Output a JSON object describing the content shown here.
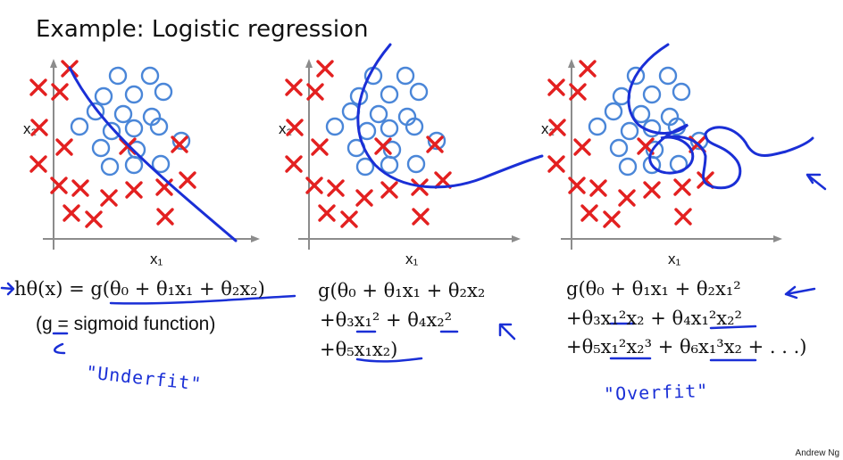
{
  "title": "Example: Logistic regression",
  "panels": [
    {
      "xlabel": "x₁",
      "ylabel": "x₂",
      "hypothesis": [
        "hθ(x) = g(θ₀ + θ₁x₁ + θ₂x₂)"
      ],
      "note": "(g = sigmoid function)",
      "annotation": "\"Underfit\""
    },
    {
      "xlabel": "x₁",
      "ylabel": "x₂",
      "hypothesis": [
        "g(θ₀ + θ₁x₁ + θ₂x₂",
        "+θ₃x₁² + θ₄x₂²",
        "+θ₅x₁x₂)"
      ]
    },
    {
      "xlabel": "x₁",
      "ylabel": "x₂",
      "hypothesis": [
        "g(θ₀ + θ₁x₁ + θ₂x₁²",
        "+θ₃x₁²x₂ + θ₄x₁²x₂²",
        "+θ₅x₁²x₂³ + θ₆x₁³x₂ + . . .)"
      ],
      "annotation": "\"Overfit\""
    }
  ],
  "footer": "Andrew Ng",
  "colors": {
    "cross": "#e32020",
    "circle": "#4a86d8",
    "ink": "#1a2fd6",
    "axis": "#8c8c8c"
  }
}
